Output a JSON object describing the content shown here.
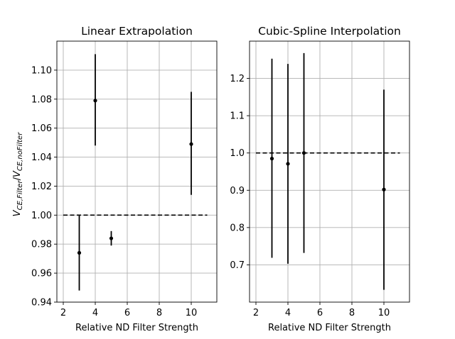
{
  "chart_data": [
    {
      "type": "scatter",
      "title": "Linear Extrapolation",
      "xlabel": "Relative ND Filter Strength",
      "ylabel": "V_{CE,Filter}/V_{CE,noFilter}",
      "xlim": [
        1.6,
        11.6
      ],
      "ylim": [
        0.94,
        1.12
      ],
      "xticks": [
        2,
        4,
        6,
        8,
        10
      ],
      "xtick_labels": [
        "2",
        "4",
        "6",
        "8",
        "10"
      ],
      "yticks": [
        0.94,
        0.96,
        0.98,
        1.0,
        1.02,
        1.04,
        1.06,
        1.08,
        1.1
      ],
      "ytick_labels": [
        "0.94",
        "0.96",
        "0.98",
        "1.00",
        "1.02",
        "1.04",
        "1.06",
        "1.08",
        "1.10"
      ],
      "grid": true,
      "reference_line": {
        "y": 1.0,
        "x_from": 2,
        "x_to": 11,
        "style": "dashed"
      },
      "points": [
        {
          "x": 3,
          "y": 0.974,
          "err_low": 0.948,
          "err_high": 1.0
        },
        {
          "x": 4,
          "y": 1.079,
          "err_low": 1.048,
          "err_high": 1.111
        },
        {
          "x": 5,
          "y": 0.984,
          "err_low": 0.979,
          "err_high": 0.989
        },
        {
          "x": 10,
          "y": 1.049,
          "err_low": 1.014,
          "err_high": 1.085
        }
      ]
    },
    {
      "type": "scatter",
      "title": "Cubic-Spline Interpolation",
      "xlabel": "Relative ND Filter Strength",
      "ylabel": "",
      "xlim": [
        1.6,
        11.6
      ],
      "ylim": [
        0.6,
        1.3
      ],
      "xticks": [
        2,
        4,
        6,
        8,
        10
      ],
      "xtick_labels": [
        "2",
        "4",
        "6",
        "8",
        "10"
      ],
      "yticks": [
        0.7,
        0.8,
        0.9,
        1.0,
        1.1,
        1.2
      ],
      "ytick_labels": [
        "0.7",
        "0.8",
        "0.9",
        "1.0",
        "1.1",
        "1.2"
      ],
      "grid": true,
      "reference_line": {
        "y": 1.0,
        "x_from": 2,
        "x_to": 11,
        "style": "dashed"
      },
      "points": [
        {
          "x": 3,
          "y": 0.985,
          "err_low": 0.719,
          "err_high": 1.253
        },
        {
          "x": 4,
          "y": 0.971,
          "err_low": 0.703,
          "err_high": 1.239
        },
        {
          "x": 5,
          "y": 1.0,
          "err_low": 0.732,
          "err_high": 1.268
        },
        {
          "x": 10,
          "y": 0.902,
          "err_low": 0.633,
          "err_high": 1.17
        }
      ]
    }
  ]
}
